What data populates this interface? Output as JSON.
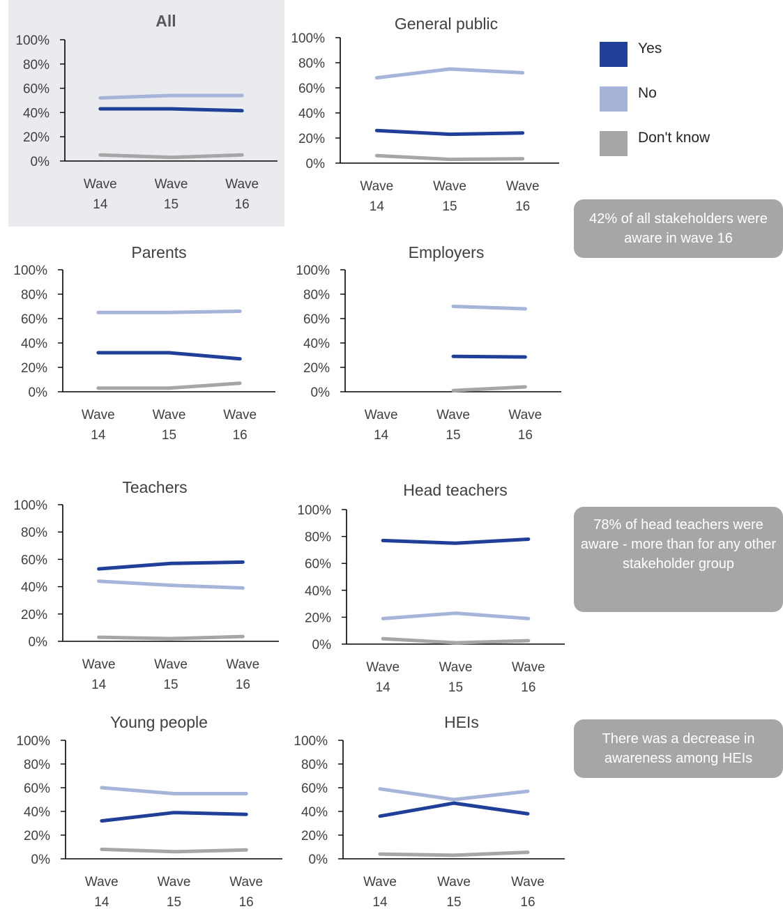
{
  "chart_data": [
    {
      "type": "line",
      "title": "All",
      "categories": [
        "Wave\n14",
        "Wave\n15",
        "Wave\n16"
      ],
      "ylim": [
        0,
        100
      ],
      "yticks": [
        "0%",
        "20%",
        "40%",
        "60%",
        "80%",
        "100%"
      ],
      "series": [
        {
          "name": "Yes",
          "values": [
            43,
            43,
            41.5
          ]
        },
        {
          "name": "No",
          "values": [
            52,
            54,
            54
          ]
        },
        {
          "name": "Don't know",
          "values": [
            5,
            3,
            5
          ]
        }
      ]
    },
    {
      "type": "line",
      "title": "General public",
      "categories": [
        "Wave\n14",
        "Wave\n15",
        "Wave\n16"
      ],
      "ylim": [
        0,
        100
      ],
      "yticks": [
        "0%",
        "20%",
        "40%",
        "60%",
        "80%",
        "100%"
      ],
      "series": [
        {
          "name": "Yes",
          "values": [
            26,
            23,
            24
          ]
        },
        {
          "name": "No",
          "values": [
            68,
            75,
            72
          ]
        },
        {
          "name": "Don't know",
          "values": [
            6,
            3,
            3.5
          ]
        }
      ]
    },
    {
      "type": "line",
      "title": "Parents",
      "categories": [
        "Wave\n14",
        "Wave\n15",
        "Wave\n16"
      ],
      "ylim": [
        0,
        100
      ],
      "yticks": [
        "0%",
        "20%",
        "40%",
        "60%",
        "80%",
        "100%"
      ],
      "series": [
        {
          "name": "Yes",
          "values": [
            32,
            32,
            27
          ]
        },
        {
          "name": "No",
          "values": [
            65,
            65,
            66
          ]
        },
        {
          "name": "Don't know",
          "values": [
            3,
            3,
            7
          ]
        }
      ]
    },
    {
      "type": "line",
      "title": "Employers",
      "categories": [
        "Wave\n14",
        "Wave\n15",
        "Wave\n16"
      ],
      "ylim": [
        0,
        100
      ],
      "yticks": [
        "0%",
        "20%",
        "40%",
        "60%",
        "80%",
        "100%"
      ],
      "series": [
        {
          "name": "Yes",
          "values": [
            null,
            29,
            28.5
          ]
        },
        {
          "name": "No",
          "values": [
            null,
            70,
            68
          ]
        },
        {
          "name": "Don't know",
          "values": [
            null,
            1,
            4
          ]
        }
      ]
    },
    {
      "type": "line",
      "title": "Teachers",
      "categories": [
        "Wave\n14",
        "Wave\n15",
        "Wave\n16"
      ],
      "ylim": [
        0,
        100
      ],
      "yticks": [
        "0%",
        "20%",
        "40%",
        "60%",
        "80%",
        "100%"
      ],
      "series": [
        {
          "name": "Yes",
          "values": [
            53,
            57,
            58
          ]
        },
        {
          "name": "No",
          "values": [
            44,
            41,
            39
          ]
        },
        {
          "name": "Don't know",
          "values": [
            3,
            2,
            3.5
          ]
        }
      ]
    },
    {
      "type": "line",
      "title": "Head teachers",
      "categories": [
        "Wave\n14",
        "Wave\n15",
        "Wave\n16"
      ],
      "ylim": [
        0,
        100
      ],
      "yticks": [
        "0%",
        "20%",
        "40%",
        "60%",
        "80%",
        "100%"
      ],
      "series": [
        {
          "name": "Yes",
          "values": [
            77,
            75,
            78
          ]
        },
        {
          "name": "No",
          "values": [
            19,
            23,
            19
          ]
        },
        {
          "name": "Don't know",
          "values": [
            4,
            1,
            2.5
          ]
        }
      ]
    },
    {
      "type": "line",
      "title": "Young people",
      "categories": [
        "Wave\n14",
        "Wave\n15",
        "Wave\n16"
      ],
      "ylim": [
        0,
        100
      ],
      "yticks": [
        "0%",
        "20%",
        "40%",
        "60%",
        "80%",
        "100%"
      ],
      "series": [
        {
          "name": "Yes",
          "values": [
            32,
            39,
            37.5
          ]
        },
        {
          "name": "No",
          "values": [
            60,
            55,
            55
          ]
        },
        {
          "name": "Don't know",
          "values": [
            8,
            6,
            7.5
          ]
        }
      ]
    },
    {
      "type": "line",
      "title": "HEIs",
      "categories": [
        "Wave\n14",
        "Wave\n15",
        "Wave\n16"
      ],
      "ylim": [
        0,
        100
      ],
      "yticks": [
        "0%",
        "20%",
        "40%",
        "60%",
        "80%",
        "100%"
      ],
      "series": [
        {
          "name": "Yes",
          "values": [
            36,
            47,
            38
          ]
        },
        {
          "name": "No",
          "values": [
            59,
            50,
            57
          ]
        },
        {
          "name": "Don't know",
          "values": [
            4,
            3,
            5.5
          ]
        }
      ]
    }
  ],
  "legend": [
    {
      "label": "Yes",
      "color": "#1f3f99"
    },
    {
      "label": "No",
      "color": "#a7b4da"
    },
    {
      "label": "Don't know",
      "color": "#a6a6a6"
    }
  ],
  "callouts": [
    {
      "text": "42% of all stakeholders were aware in wave 16"
    },
    {
      "text": "78% of head teachers were aware - more than for any other stakeholder group"
    },
    {
      "text": "There was a decrease in awareness among HEIs"
    }
  ]
}
